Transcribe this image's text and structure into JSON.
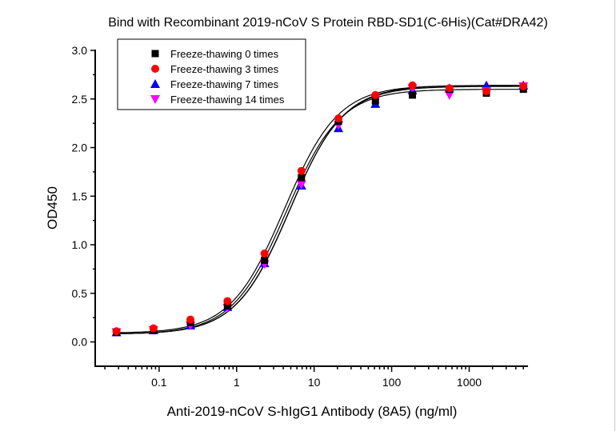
{
  "chart_data": {
    "type": "scatter",
    "title": "Bind with Recombinant 2019-nCoV S Protein RBD-SD1(C-6His)(Cat#DRA42)",
    "xlabel": "Anti-2019-nCoV S-hIgG1 Antibody (8A5) (ng/ml)",
    "ylabel": "OD450",
    "xscale": "log",
    "xlim": [
      0.015,
      5600
    ],
    "ylim": [
      -0.25,
      3.0
    ],
    "xticks": [
      0.1,
      1,
      10,
      100,
      1000
    ],
    "xtick_labels": [
      "0.1",
      "1",
      "10",
      "100",
      "1000"
    ],
    "yticks": [
      0.0,
      0.5,
      1.0,
      1.5,
      2.0,
      2.5,
      3.0
    ],
    "ytick_labels": [
      "0.0",
      "0.5",
      "1.0",
      "1.5",
      "2.0",
      "2.5",
      "3.0"
    ],
    "grid": false,
    "legend_position": "top-left",
    "fit": "four-parameter logistic curve per series",
    "x": [
      0.0282,
      0.0847,
      0.254,
      0.762,
      2.29,
      6.86,
      20.6,
      61.7,
      185.2,
      555.6,
      1666.7,
      5000
    ],
    "series": [
      {
        "name": "Freeze-thawing 0 times",
        "marker": "square",
        "color": "#000000",
        "values": [
          0.1,
          0.12,
          0.2,
          0.37,
          0.84,
          1.69,
          2.27,
          2.48,
          2.54,
          2.6,
          2.56,
          2.6
        ]
      },
      {
        "name": "Freeze-thawing 3 times",
        "marker": "circle",
        "color": "#ff0000",
        "values": [
          0.11,
          0.14,
          0.23,
          0.42,
          0.91,
          1.76,
          2.3,
          2.54,
          2.64,
          2.61,
          2.58,
          2.63
        ]
      },
      {
        "name": "Freeze-thawing 7 times",
        "marker": "triangle-up",
        "color": "#0000ff",
        "values": [
          0.1,
          0.12,
          0.17,
          0.36,
          0.81,
          1.61,
          2.2,
          2.45,
          2.59,
          2.61,
          2.64,
          2.64
        ]
      },
      {
        "name": "Freeze-thawing 14 times",
        "marker": "triangle-down",
        "color": "#ff00ff",
        "values": [
          0.1,
          0.12,
          0.17,
          0.35,
          0.8,
          1.62,
          2.23,
          2.5,
          2.61,
          2.54,
          2.58,
          2.63
        ]
      }
    ]
  }
}
